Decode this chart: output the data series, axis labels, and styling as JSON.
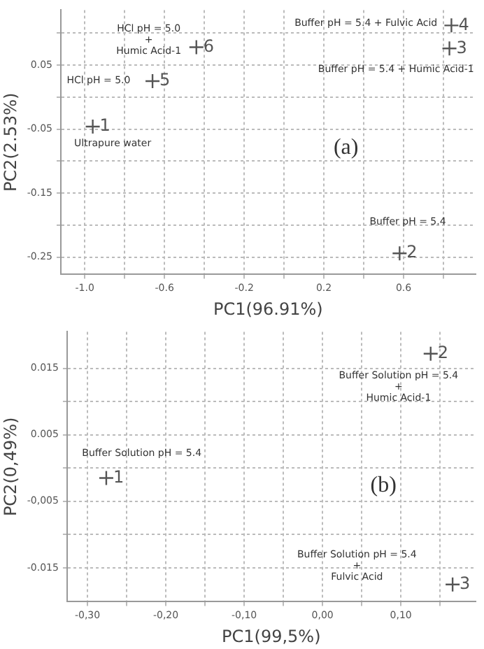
{
  "chart_data": [
    {
      "type": "scatter",
      "xlabel": "PC1(96.91%)",
      "ylabel": "PC2(2.53%)",
      "xlim": [
        -1.12,
        0.96
      ],
      "ylim": [
        -0.277,
        0.136
      ],
      "xticks": [
        {
          "value": -1.0,
          "label": "-1.0"
        },
        {
          "value": -0.8,
          "label": null
        },
        -0.6,
        {
          "value": -0.4,
          "label": null
        },
        -0.2,
        {
          "value": 0,
          "label": null
        },
        0.2,
        {
          "value": 0.4,
          "label": null
        },
        0.6,
        {
          "value": 0.8,
          "label": null
        }
      ],
      "yticks": [
        -0.25,
        {
          "value": -0.2,
          "label": null
        },
        -0.15,
        {
          "value": -0.1,
          "label": null
        },
        -0.05,
        {
          "value": 0,
          "label": null
        },
        0.05,
        {
          "value": 0.1,
          "label": null
        }
      ],
      "grid": true,
      "marker": "cross",
      "series": [
        {
          "name": "1",
          "color": "#555555",
          "x": [
            -0.96
          ],
          "values": [
            -0.046
          ]
        },
        {
          "name": "2",
          "color": "#555555",
          "x": [
            0.58
          ],
          "values": [
            -0.244
          ]
        },
        {
          "name": "3",
          "color": "#555555",
          "x": [
            0.83
          ],
          "values": [
            0.076
          ]
        },
        {
          "name": "4",
          "color": "#555555",
          "x": [
            0.84
          ],
          "values": [
            0.112
          ]
        },
        {
          "name": "5",
          "color": "#555555",
          "x": [
            -0.66
          ],
          "values": [
            0.025
          ]
        },
        {
          "name": "6",
          "color": "#555555",
          "x": [
            -0.44
          ],
          "values": [
            0.078
          ]
        }
      ],
      "annotations": [
        "HCl pH = 5.0\n+\nHumic Acid-1",
        "HCl pH = 5.0",
        "Ultrapure water",
        "Buffer pH = 5.4 + Fulvic Acid",
        "Buffer pH = 5.4 + Humic Acid-1",
        "Buffer pH = 5.4",
        "(a)"
      ]
    },
    {
      "type": "scatter",
      "xlabel": "PC1(99,5%)",
      "ylabel": "PC2(0,49%)",
      "xlim": [
        -0.326,
        0.195
      ],
      "ylim": [
        -0.0201,
        0.0205
      ],
      "xticks": [
        {
          "value": -0.3,
          "label": "-0,30"
        },
        {
          "value": -0.25,
          "label": null
        },
        {
          "value": -0.2,
          "label": "-0,20"
        },
        {
          "value": -0.15,
          "label": null
        },
        {
          "value": -0.1,
          "label": "-0,10"
        },
        {
          "value": -0.05,
          "label": null
        },
        {
          "value": 0,
          "label": "0,00"
        },
        {
          "value": 0.05,
          "label": null
        },
        {
          "value": 0.1,
          "label": "0,10"
        },
        {
          "value": 0.15,
          "label": null
        }
      ],
      "yticks": [
        -0.015,
        {
          "value": -0.01,
          "label": null
        },
        {
          "value": -0.005,
          "label": "-0,005"
        },
        {
          "value": 0,
          "label": null
        },
        0.005,
        {
          "value": 0.01,
          "label": null
        },
        0.015
      ],
      "grid": true,
      "marker": "cross",
      "series": [
        {
          "name": "1",
          "color": "#555555",
          "x": [
            -0.276
          ],
          "values": [
            -0.0015
          ]
        },
        {
          "name": "2",
          "color": "#555555",
          "x": [
            0.138
          ],
          "values": [
            0.0172
          ]
        },
        {
          "name": "3",
          "color": "#555555",
          "x": [
            0.166
          ],
          "values": [
            -0.0175
          ]
        }
      ],
      "annotations": [
        "Buffer Solution pH = 5.4",
        "Buffer Solution pH = 5.4\n+\nHumic Acid-1",
        "Buffer Solution pH = 5.4\n+\nFulvic Acid",
        "(b)"
      ]
    }
  ]
}
